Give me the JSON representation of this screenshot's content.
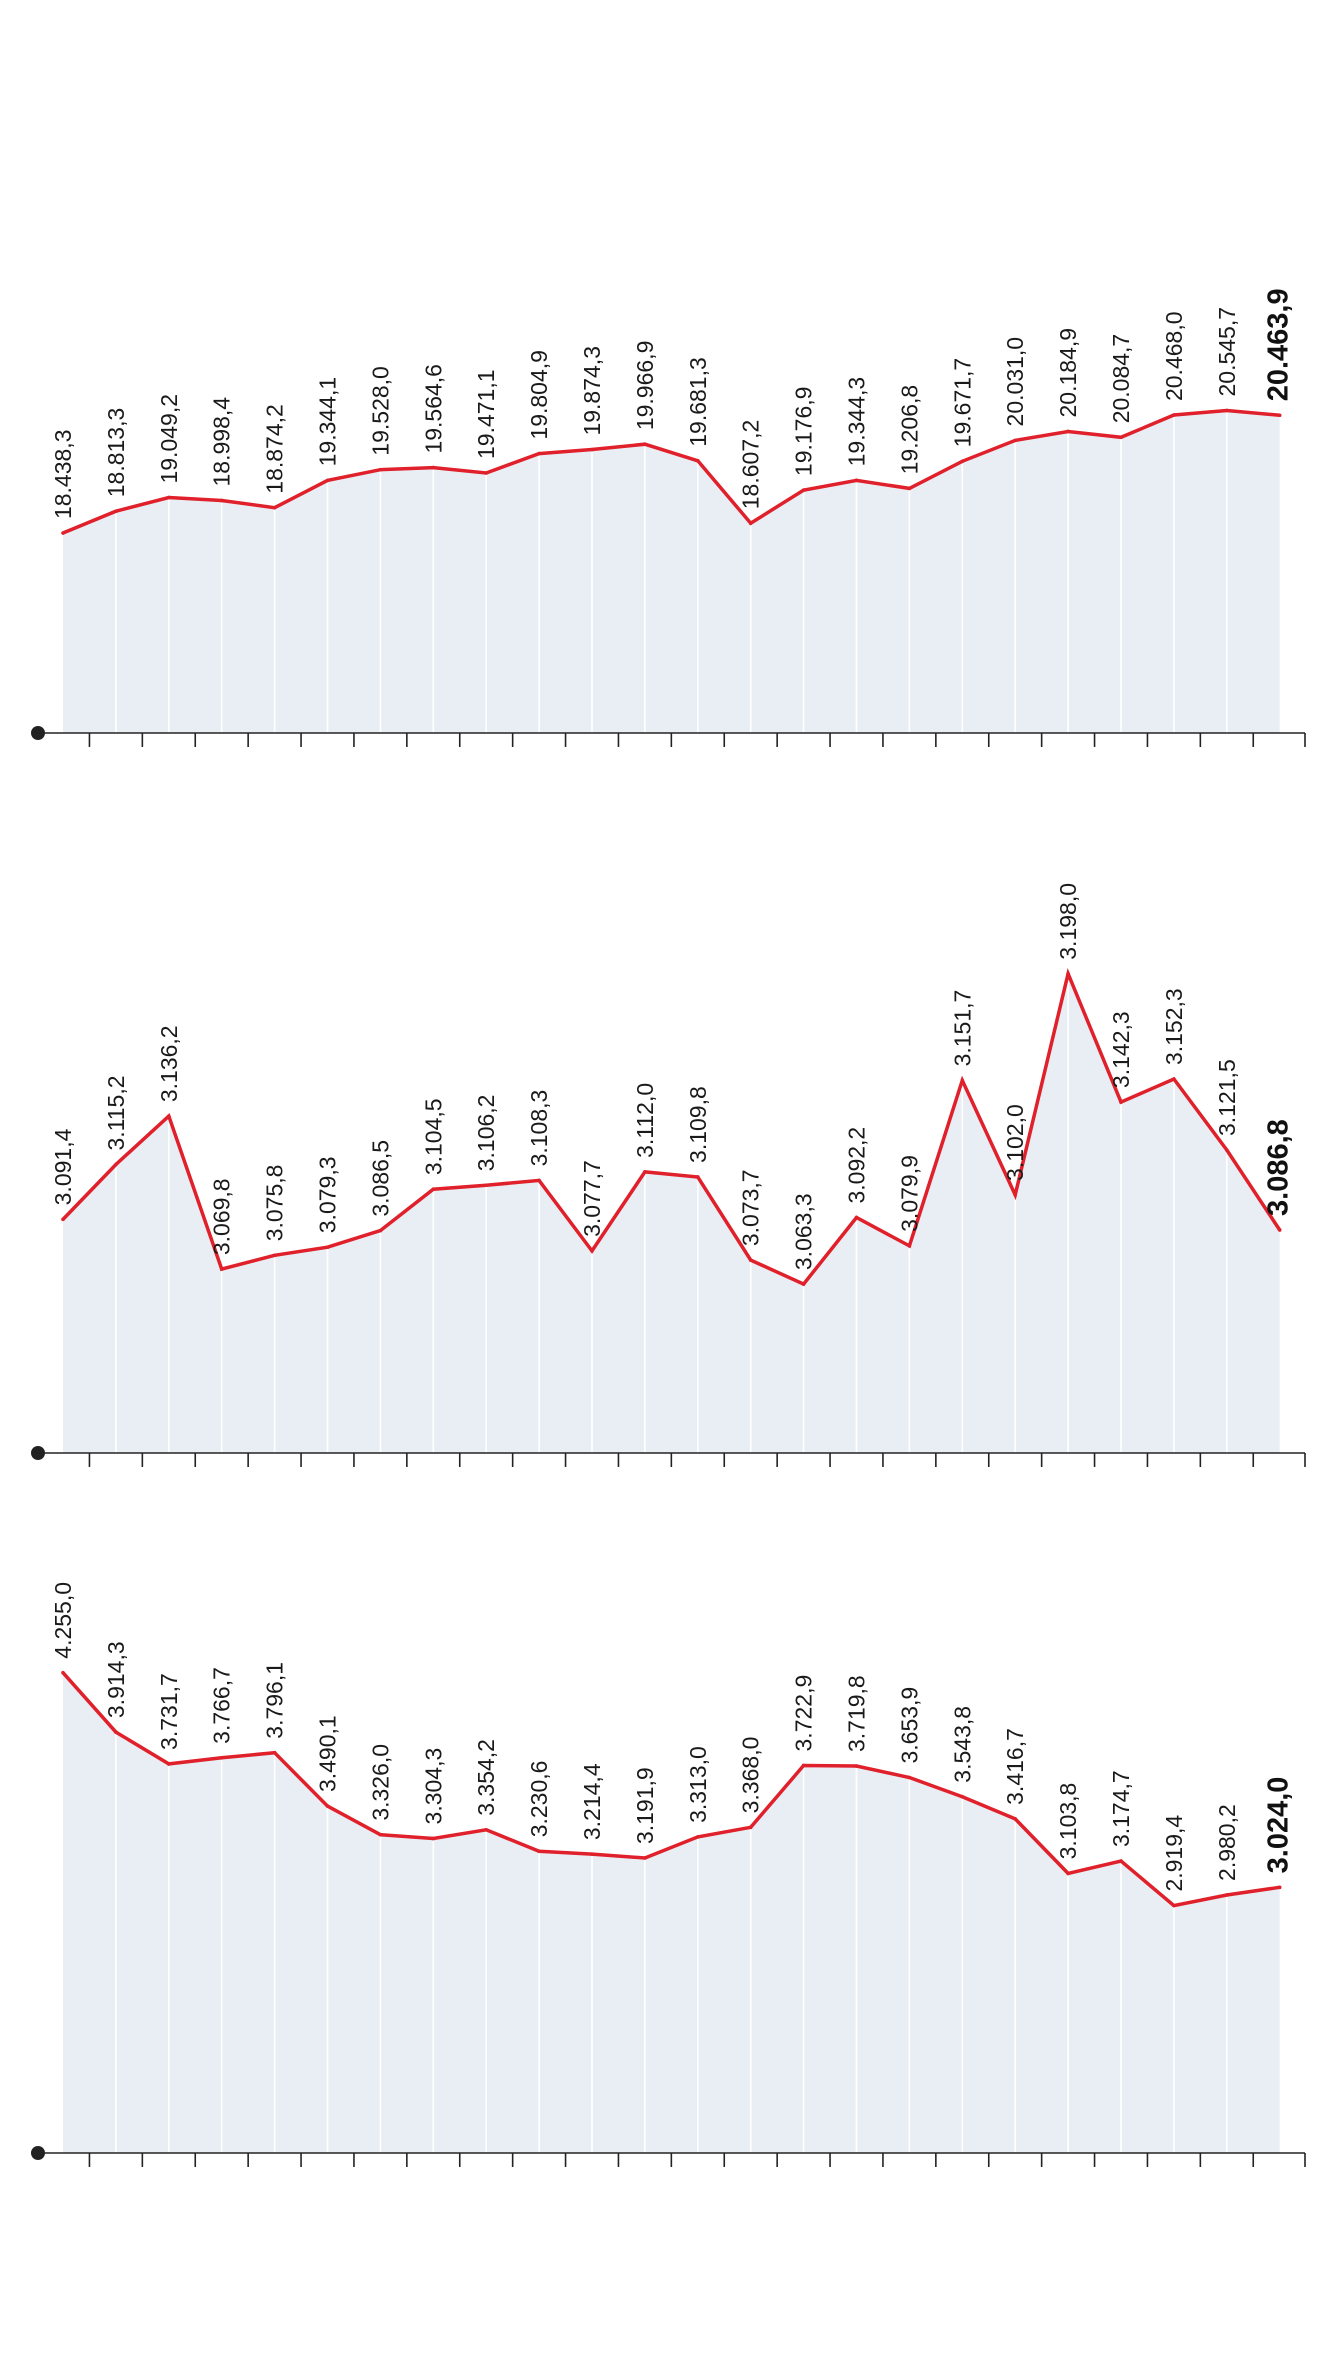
{
  "colors": {
    "line": "#e0202a",
    "area": "#e9eef4",
    "separator": "#ffffff",
    "axis": "#222222",
    "text": "#1a1a1a"
  },
  "chart_data": [
    {
      "type": "area",
      "title": "",
      "x": [
        1,
        2,
        3,
        4,
        5,
        6,
        7,
        8,
        9,
        10,
        11,
        12,
        13,
        14,
        15,
        16,
        17,
        18,
        19,
        20,
        21,
        22,
        23,
        24
      ],
      "values": [
        18438.3,
        18813.3,
        19049.2,
        18998.4,
        18874.2,
        19344.1,
        19528.0,
        19564.6,
        19471.1,
        19804.9,
        19874.3,
        19966.9,
        19681.3,
        18607.2,
        19176.9,
        19344.3,
        19206.8,
        19671.7,
        20031.0,
        20184.9,
        20084.7,
        20468.0,
        20545.7,
        20463.9
      ],
      "labels": [
        "18.438,3",
        "18.813,3",
        "19.049,2",
        "18.998,4",
        "18.874,2",
        "19.344,1",
        "19.528,0",
        "19.564,6",
        "19.471,1",
        "19.804,9",
        "19.874,3",
        "19.966,9",
        "19.681,3",
        "18.607,2",
        "19.176,9",
        "19.344,3",
        "19.206,8",
        "19.671,7",
        "20.031,0",
        "20.184,9",
        "20.084,7",
        "20.468,0",
        "20.545,7",
        "20.463,9"
      ],
      "ylim": [
        15000,
        21500
      ],
      "grid": false,
      "legend": "none"
    },
    {
      "type": "area",
      "title": "",
      "x": [
        1,
        2,
        3,
        4,
        5,
        6,
        7,
        8,
        9,
        10,
        11,
        12,
        13,
        14,
        15,
        16,
        17,
        18,
        19,
        20,
        21,
        22,
        23,
        24
      ],
      "values": [
        3091.4,
        3115.2,
        3136.2,
        3069.8,
        3075.8,
        3079.3,
        3086.5,
        3104.5,
        3106.2,
        3108.3,
        3077.7,
        3112.0,
        3109.8,
        3073.7,
        3063.3,
        3092.2,
        3079.9,
        3151.7,
        3102.0,
        3198.0,
        3142.3,
        3152.3,
        3121.5,
        3086.8
      ],
      "labels": [
        "3.091,4",
        "3.115,2",
        "3.136,2",
        "3.069,8",
        "3.075,8",
        "3.079,3",
        "3.086,5",
        "3.104,5",
        "3.106,2",
        "3.108,3",
        "3.077,7",
        "3.112,0",
        "3.109,8",
        "3.073,7",
        "3.063,3",
        "3.092,2",
        "3.079,9",
        "3.151,7",
        "3.102,0",
        "3.198,0",
        "3.142,3",
        "3.152,3",
        "3.121,5",
        "3.086,8"
      ],
      "ylim": [
        2990,
        3230
      ],
      "grid": false,
      "legend": "none"
    },
    {
      "type": "area",
      "title": "",
      "x": [
        1,
        2,
        3,
        4,
        5,
        6,
        7,
        8,
        9,
        10,
        11,
        12,
        13,
        14,
        15,
        16,
        17,
        18,
        19,
        20,
        21,
        22,
        23,
        24
      ],
      "values": [
        4255.0,
        3914.3,
        3731.7,
        3766.7,
        3796.1,
        3490.1,
        3326.0,
        3304.3,
        3354.2,
        3230.6,
        3214.4,
        3191.9,
        3313.0,
        3368.0,
        3722.9,
        3719.8,
        3653.9,
        3543.8,
        3416.7,
        3103.8,
        3174.7,
        2919.4,
        2980.2,
        3024.0
      ],
      "labels": [
        "4.255,0",
        "3.914,3",
        "3.731,7",
        "3.766,7",
        "3.796,1",
        "3.490,1",
        "3.326,0",
        "3.304,3",
        "3.354,2",
        "3.230,6",
        "3.214,4",
        "3.191,9",
        "3.313,0",
        "3.368,0",
        "3.722,9",
        "3.719,8",
        "3.653,9",
        "3.543,8",
        "3.416,7",
        "3.103,8",
        "3.174,7",
        "2.919,4",
        "2.980,2",
        "3.024,0"
      ],
      "ylim": [
        1500,
        4500
      ],
      "grid": false,
      "legend": "none"
    }
  ]
}
